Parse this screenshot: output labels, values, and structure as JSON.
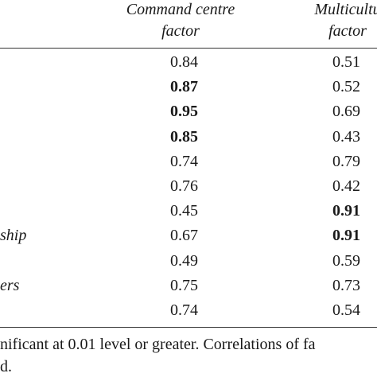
{
  "headers": {
    "command": [
      "Command centre",
      "factor"
    ],
    "multicultural": [
      "Multicultu",
      "factor"
    ]
  },
  "rows": [
    {
      "label": "",
      "c1": "0.84",
      "c2": "0.51",
      "c1_bold": false,
      "c2_bold": false
    },
    {
      "label": "",
      "c1": "0.87",
      "c2": "0.52",
      "c1_bold": true,
      "c2_bold": false
    },
    {
      "label": "",
      "c1": "0.95",
      "c2": "0.69",
      "c1_bold": true,
      "c2_bold": false
    },
    {
      "label": "",
      "c1": "0.85",
      "c2": "0.43",
      "c1_bold": true,
      "c2_bold": false
    },
    {
      "label": "",
      "c1": "0.74",
      "c2": "0.79",
      "c1_bold": false,
      "c2_bold": false
    },
    {
      "label": "",
      "c1": "0.76",
      "c2": "0.42",
      "c1_bold": false,
      "c2_bold": false
    },
    {
      "label": "",
      "c1": "0.45",
      "c2": "0.91",
      "c1_bold": false,
      "c2_bold": true
    },
    {
      "label": "ship",
      "c1": "0.67",
      "c2": "0.91",
      "c1_bold": false,
      "c2_bold": true
    },
    {
      "label": "",
      "c1": "0.49",
      "c2": "0.59",
      "c1_bold": false,
      "c2_bold": false
    },
    {
      "label": "ers",
      "c1": "0.75",
      "c2": "0.73",
      "c1_bold": false,
      "c2_bold": false
    },
    {
      "label": "",
      "c1": "0.74",
      "c2": "0.54",
      "c1_bold": false,
      "c2_bold": false
    }
  ],
  "notes": [
    "nificant at 0.01 level or greater. Correlations of fa",
    "d."
  ]
}
